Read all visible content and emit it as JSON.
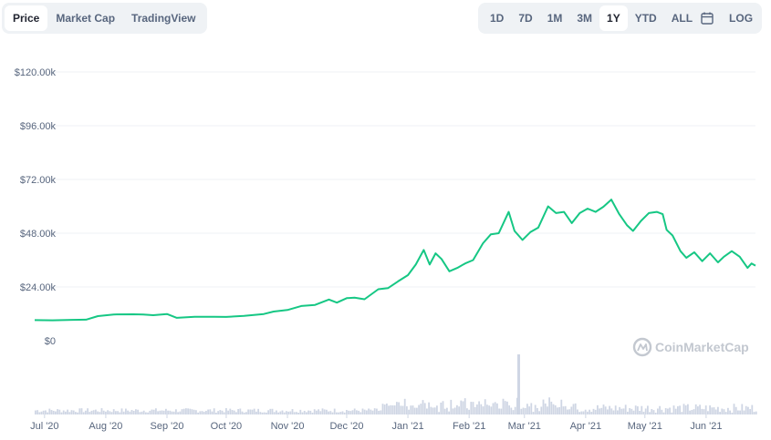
{
  "tabs": {
    "left": [
      {
        "label": "Price",
        "active": true
      },
      {
        "label": "Market Cap",
        "active": false
      },
      {
        "label": "TradingView",
        "active": false
      }
    ],
    "right": [
      {
        "label": "1D",
        "active": false
      },
      {
        "label": "7D",
        "active": false
      },
      {
        "label": "1M",
        "active": false
      },
      {
        "label": "3M",
        "active": false
      },
      {
        "label": "1Y",
        "active": true
      },
      {
        "label": "YTD",
        "active": false
      },
      {
        "label": "ALL",
        "active": false
      }
    ],
    "log_label": "LOG",
    "calendar_icon": "calendar-icon"
  },
  "watermark": "CoinMarketCap",
  "colors": {
    "line": "#16c784",
    "volume": "#cfd6e4",
    "grid": "#eff2f5"
  },
  "chart_data": {
    "type": "line",
    "ylabel": "",
    "xlabel": "",
    "ylim": [
      0,
      120000
    ],
    "ytick_labels": [
      "$0",
      "$24.00k",
      "$48.00k",
      "$72.00k",
      "$96.00k",
      "$120.00k"
    ],
    "ytick_values": [
      0,
      24000,
      48000,
      72000,
      96000,
      120000
    ],
    "xtick_labels": [
      "Jul '20",
      "Aug '20",
      "Sep '20",
      "Oct '20",
      "Nov '20",
      "Dec '20",
      "Jan '21",
      "Feb '21",
      "Mar '21",
      "Apr '21",
      "May '21",
      "Jun '21"
    ],
    "xtick_dates": [
      "2020-07-01",
      "2020-08-01",
      "2020-09-01",
      "2020-10-01",
      "2020-11-01",
      "2020-12-01",
      "2021-01-01",
      "2021-02-01",
      "2021-03-01",
      "2021-04-01",
      "2021-05-01",
      "2021-06-01"
    ],
    "xlim": [
      "2020-06-26",
      "2021-06-26"
    ],
    "grid": true,
    "series": [
      {
        "points": [
          [
            "2020-06-26",
            9200
          ],
          [
            "2020-07-05",
            9100
          ],
          [
            "2020-07-15",
            9300
          ],
          [
            "2020-07-22",
            9400
          ],
          [
            "2020-07-28",
            11000
          ],
          [
            "2020-08-05",
            11700
          ],
          [
            "2020-08-15",
            11800
          ],
          [
            "2020-08-20",
            11700
          ],
          [
            "2020-08-25",
            11400
          ],
          [
            "2020-09-01",
            11900
          ],
          [
            "2020-09-06",
            10200
          ],
          [
            "2020-09-15",
            10700
          ],
          [
            "2020-09-25",
            10700
          ],
          [
            "2020-10-01",
            10600
          ],
          [
            "2020-10-10",
            11100
          ],
          [
            "2020-10-20",
            11900
          ],
          [
            "2020-10-25",
            13000
          ],
          [
            "2020-11-01",
            13700
          ],
          [
            "2020-11-08",
            15500
          ],
          [
            "2020-11-15",
            16000
          ],
          [
            "2020-11-22",
            18400
          ],
          [
            "2020-11-26",
            17000
          ],
          [
            "2020-12-01",
            19000
          ],
          [
            "2020-12-05",
            19200
          ],
          [
            "2020-12-10",
            18500
          ],
          [
            "2020-12-17",
            23000
          ],
          [
            "2020-12-22",
            23500
          ],
          [
            "2020-12-27",
            26500
          ],
          [
            "2021-01-01",
            29300
          ],
          [
            "2021-01-05",
            34000
          ],
          [
            "2021-01-09",
            40500
          ],
          [
            "2021-01-12",
            34000
          ],
          [
            "2021-01-15",
            39000
          ],
          [
            "2021-01-18",
            36500
          ],
          [
            "2021-01-22",
            31000
          ],
          [
            "2021-01-26",
            32500
          ],
          [
            "2021-01-30",
            34500
          ],
          [
            "2021-02-03",
            36000
          ],
          [
            "2021-02-08",
            43500
          ],
          [
            "2021-02-12",
            47500
          ],
          [
            "2021-02-16",
            48000
          ],
          [
            "2021-02-21",
            57500
          ],
          [
            "2021-02-24",
            49000
          ],
          [
            "2021-02-28",
            45000
          ],
          [
            "2021-03-04",
            48500
          ],
          [
            "2021-03-08",
            50500
          ],
          [
            "2021-03-13",
            60000
          ],
          [
            "2021-03-17",
            57000
          ],
          [
            "2021-03-21",
            57500
          ],
          [
            "2021-03-25",
            52500
          ],
          [
            "2021-03-29",
            57000
          ],
          [
            "2021-04-02",
            59000
          ],
          [
            "2021-04-06",
            57500
          ],
          [
            "2021-04-10",
            59800
          ],
          [
            "2021-04-14",
            63000
          ],
          [
            "2021-04-18",
            56500
          ],
          [
            "2021-04-22",
            51500
          ],
          [
            "2021-04-25",
            49000
          ],
          [
            "2021-04-29",
            53500
          ],
          [
            "2021-05-03",
            57000
          ],
          [
            "2021-05-07",
            57500
          ],
          [
            "2021-05-10",
            56500
          ],
          [
            "2021-05-12",
            49500
          ],
          [
            "2021-05-15",
            47000
          ],
          [
            "2021-05-19",
            40000
          ],
          [
            "2021-05-22",
            37000
          ],
          [
            "2021-05-26",
            39500
          ],
          [
            "2021-05-30",
            35500
          ],
          [
            "2021-06-03",
            39000
          ],
          [
            "2021-06-07",
            35000
          ],
          [
            "2021-06-10",
            37500
          ],
          [
            "2021-06-14",
            40000
          ],
          [
            "2021-06-18",
            37500
          ],
          [
            "2021-06-22",
            32500
          ],
          [
            "2021-06-24",
            34500
          ],
          [
            "2021-06-26",
            33500
          ]
        ]
      }
    ]
  }
}
